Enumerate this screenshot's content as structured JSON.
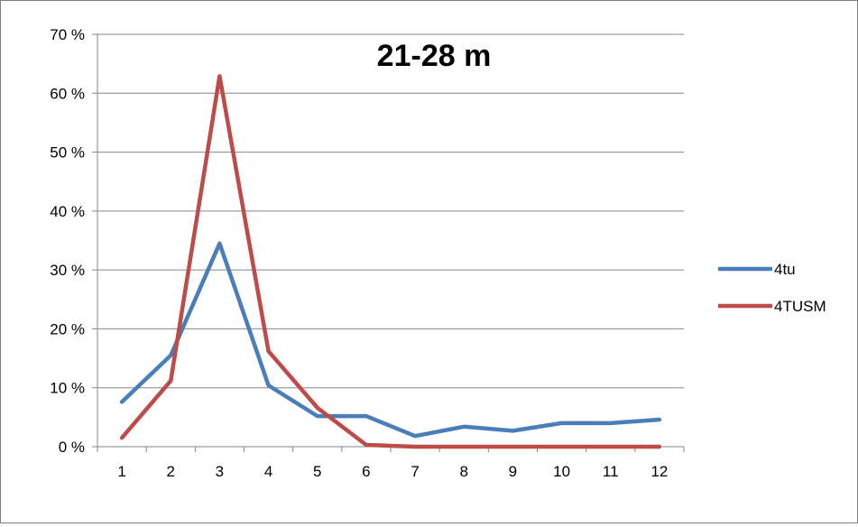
{
  "chart_data": {
    "type": "line",
    "title": "21-28 m",
    "xlabel": "",
    "ylabel": "",
    "categories": [
      "1",
      "2",
      "3",
      "4",
      "5",
      "6",
      "7",
      "8",
      "9",
      "10",
      "11",
      "12"
    ],
    "ylim": [
      0,
      70
    ],
    "yticks": [
      0,
      10,
      20,
      30,
      40,
      50,
      60,
      70
    ],
    "ytick_labels": [
      "0 %",
      "10 %",
      "20 %",
      "30 %",
      "40 %",
      "50 %",
      "60 %",
      "70 %"
    ],
    "grid": true,
    "legend_position": "right",
    "series": [
      {
        "name": "4tu",
        "color": "#4a7ebb",
        "values": [
          7.6,
          15.5,
          34.5,
          10.4,
          5.2,
          5.2,
          1.8,
          3.4,
          2.7,
          4.0,
          4.0,
          4.6
        ]
      },
      {
        "name": "4TUSM",
        "color": "#be4b48",
        "values": [
          1.5,
          11.2,
          62.9,
          16.2,
          6.6,
          0.3,
          0.0,
          0.0,
          0.0,
          0.0,
          0.0,
          0.0
        ]
      }
    ]
  }
}
